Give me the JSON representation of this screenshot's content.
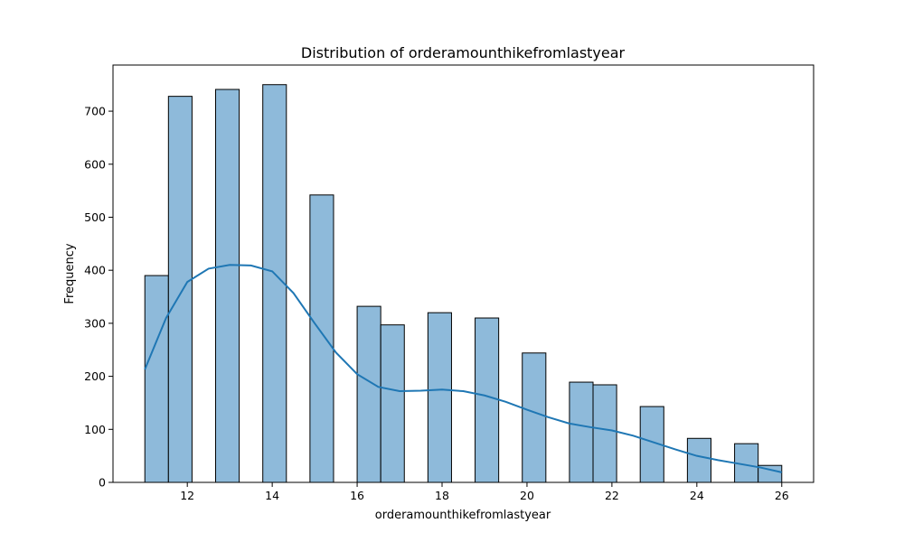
{
  "chart_data": {
    "type": "bar",
    "title": "Distribution of orderamounthikefromlastyear",
    "xlabel": "orderamounthikefromlastyear",
    "ylabel": "Frequency",
    "xlim": [
      10.25,
      26.75
    ],
    "ylim": [
      0,
      787
    ],
    "xticks": [
      12,
      14,
      16,
      18,
      20,
      22,
      24,
      26
    ],
    "yticks": [
      0,
      100,
      200,
      300,
      400,
      500,
      600,
      700
    ],
    "bin_width": 0.5556,
    "bins": [
      {
        "start": 11.0,
        "count": 390
      },
      {
        "start": 11.5556,
        "count": 728
      },
      {
        "start": 12.6667,
        "count": 741
      },
      {
        "start": 13.7778,
        "count": 750
      },
      {
        "start": 14.8889,
        "count": 542
      },
      {
        "start": 16.0,
        "count": 332
      },
      {
        "start": 16.5556,
        "count": 297
      },
      {
        "start": 17.6667,
        "count": 320
      },
      {
        "start": 18.7778,
        "count": 310
      },
      {
        "start": 19.8889,
        "count": 244
      },
      {
        "start": 21.0,
        "count": 189
      },
      {
        "start": 21.5556,
        "count": 184
      },
      {
        "start": 22.6667,
        "count": 143
      },
      {
        "start": 23.7778,
        "count": 83
      },
      {
        "start": 24.8889,
        "count": 73
      },
      {
        "start": 25.4444,
        "count": 32
      }
    ],
    "kde": {
      "x": [
        11.0,
        11.5,
        12.0,
        12.5,
        13.0,
        13.5,
        14.0,
        14.5,
        15.0,
        15.5,
        16.0,
        16.5,
        17.0,
        17.5,
        18.0,
        18.5,
        19.0,
        19.5,
        20.0,
        20.5,
        21.0,
        21.5,
        22.0,
        22.5,
        23.0,
        23.5,
        24.0,
        24.5,
        25.0,
        25.5,
        26.0
      ],
      "y": [
        213,
        310,
        378,
        403,
        410,
        409,
        398,
        357,
        300,
        245,
        204,
        180,
        172,
        173,
        175,
        172,
        164,
        152,
        137,
        123,
        111,
        104,
        98,
        88,
        75,
        62,
        50,
        42,
        35,
        28,
        19
      ]
    },
    "colors": {
      "bar_fill": "#8ebada",
      "bar_edge": "#000000",
      "kde_line": "#1f77b4"
    },
    "grid": false,
    "legend": "none"
  }
}
